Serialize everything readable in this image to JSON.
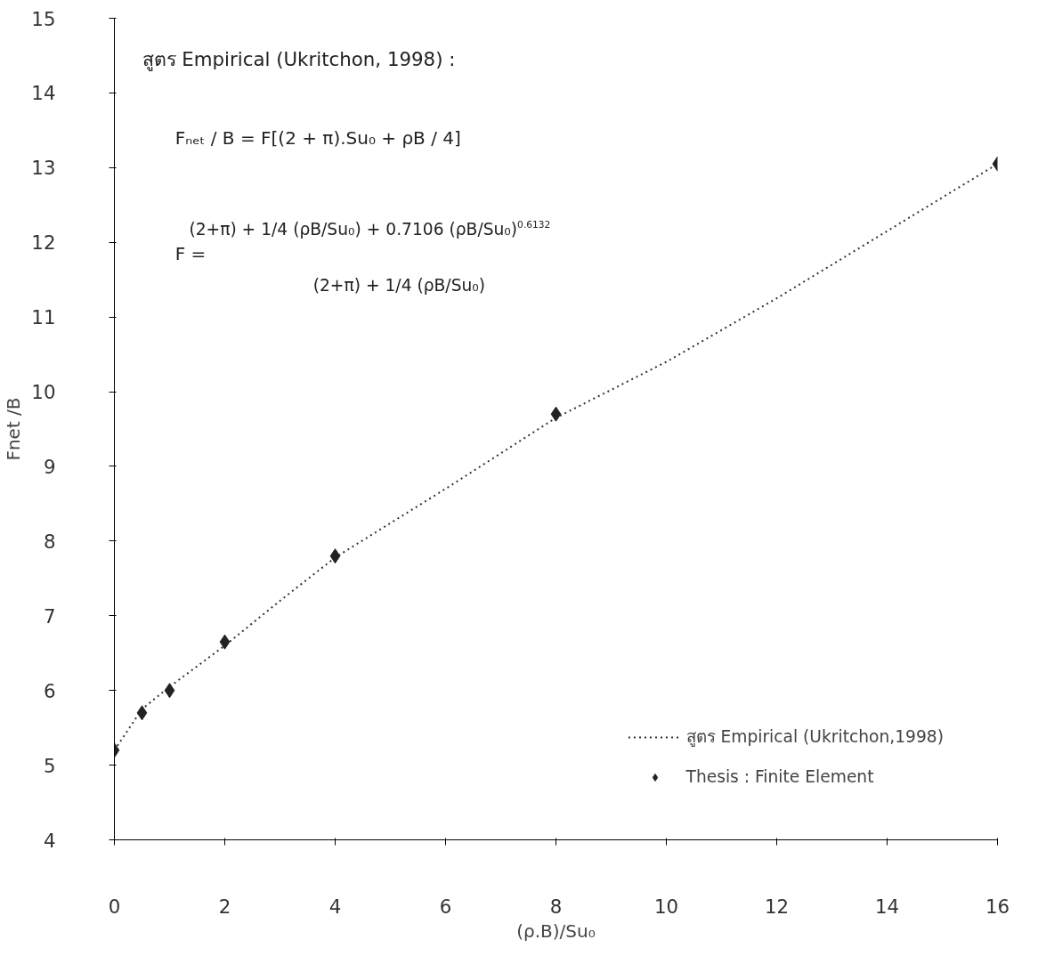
{
  "chart_data": {
    "type": "line",
    "xlabel": "(ρ.B)/Su₀",
    "ylabel": "Fnet /B",
    "xlim": [
      0,
      16
    ],
    "ylim": [
      4,
      15
    ],
    "xticks": [
      0,
      2,
      4,
      6,
      8,
      10,
      12,
      14,
      16
    ],
    "yticks": [
      4,
      5,
      6,
      7,
      8,
      9,
      10,
      11,
      12,
      13,
      14,
      15
    ],
    "grid": false,
    "legend": "bottom right",
    "annotations": [
      "สูตร Empirical (Ukritchon, 1998)  :",
      "Fₙₑₜ / B  =  F[(2 + π).Su₀ + ρB / 4]",
      "(2+π) + 1/4 (ρB/Su₀) + 0.7106 (ρB/Su₀)$^{0.6132}$",
      "F  =",
      "(2+π) + 1/4 (ρB/Su₀)"
    ],
    "series": [
      {
        "name": "สูตร Empirical (Ukritchon,1998)",
        "marker": "none",
        "line_style": "dotted",
        "color": "#333333",
        "x": [
          0,
          0.5,
          1,
          2,
          3,
          4,
          6,
          8,
          10,
          12,
          14,
          16
        ],
        "values": [
          5.2,
          5.75,
          6.05,
          6.6,
          7.2,
          7.78,
          8.7,
          9.65,
          10.4,
          11.25,
          12.15,
          13.05
        ]
      },
      {
        "name": "Thesis : Finite Element",
        "type": "scatter",
        "marker": "diamond",
        "color": "#222222",
        "x": [
          0,
          0.5,
          1,
          2,
          4,
          8,
          16
        ],
        "values": [
          5.2,
          5.7,
          6.0,
          6.65,
          7.8,
          9.7,
          13.05
        ]
      }
    ]
  }
}
